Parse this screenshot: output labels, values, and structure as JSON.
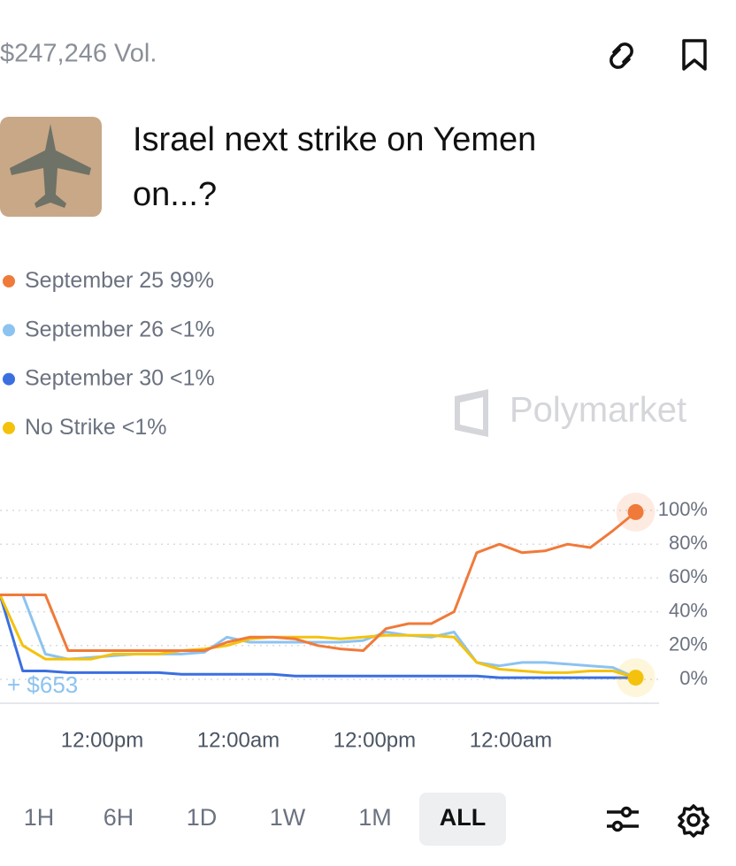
{
  "header": {
    "volume": "$247,246 Vol.",
    "title_line1": "Israel next strike on Yemen",
    "title_line2": "on...?"
  },
  "watermark": "Polymarket",
  "chart_data": {
    "type": "line",
    "x": [
      0,
      2,
      4,
      6,
      8,
      10,
      12,
      14,
      16,
      18,
      20,
      22,
      24,
      26,
      28,
      30,
      32,
      34,
      36,
      38,
      40,
      42,
      44,
      46,
      48,
      50,
      52,
      54,
      56
    ],
    "series": [
      {
        "name": "September 25",
        "legend_value": "99%",
        "color": "#f07a3a",
        "values": [
          50,
          50,
          50,
          17,
          17,
          17,
          17,
          17,
          17,
          17,
          22,
          25,
          25,
          24,
          20,
          18,
          17,
          30,
          33,
          33,
          40,
          75,
          80,
          75,
          76,
          80,
          78,
          88,
          99
        ]
      },
      {
        "name": "September 26",
        "legend_value": "<1%",
        "color": "#8cc3f0",
        "values": [
          50,
          50,
          15,
          12,
          13,
          14,
          15,
          15,
          15,
          16,
          25,
          22,
          22,
          22,
          22,
          22,
          23,
          28,
          26,
          25,
          28,
          10,
          8,
          10,
          10,
          9,
          8,
          7,
          1
        ]
      },
      {
        "name": "September 30",
        "legend_value": "<1%",
        "color": "#3b6fe0",
        "values": [
          50,
          5,
          5,
          4,
          4,
          4,
          4,
          4,
          3,
          3,
          3,
          3,
          3,
          2,
          2,
          2,
          2,
          2,
          2,
          2,
          2,
          2,
          1,
          1,
          1,
          1,
          1,
          1,
          1
        ]
      },
      {
        "name": "No Strike",
        "legend_value": "<1%",
        "color": "#f4c20d",
        "values": [
          50,
          20,
          12,
          12,
          12,
          15,
          15,
          15,
          17,
          18,
          20,
          24,
          25,
          25,
          25,
          24,
          25,
          26,
          26,
          26,
          25,
          10,
          6,
          5,
          4,
          4,
          5,
          5,
          1
        ]
      }
    ],
    "xlim": [
      0,
      56.5
    ],
    "xticks": [
      {
        "value": 9,
        "label": "12:00pm"
      },
      {
        "value": 21,
        "label": "12:00am"
      },
      {
        "value": 33,
        "label": "12:00pm"
      },
      {
        "value": 45,
        "label": "12:00am"
      }
    ],
    "ylim": [
      0,
      100
    ],
    "yticks": [
      {
        "value": 0,
        "label": "0%"
      },
      {
        "value": 20,
        "label": "20%"
      },
      {
        "value": 40,
        "label": "40%"
      },
      {
        "value": 60,
        "label": "60%"
      },
      {
        "value": 80,
        "label": "80%"
      },
      {
        "value": 100,
        "label": "100%"
      }
    ],
    "grid": true,
    "annotation": "+ $653"
  },
  "range_buttons": [
    "1H",
    "6H",
    "1D",
    "1W",
    "1M",
    "ALL"
  ]
}
